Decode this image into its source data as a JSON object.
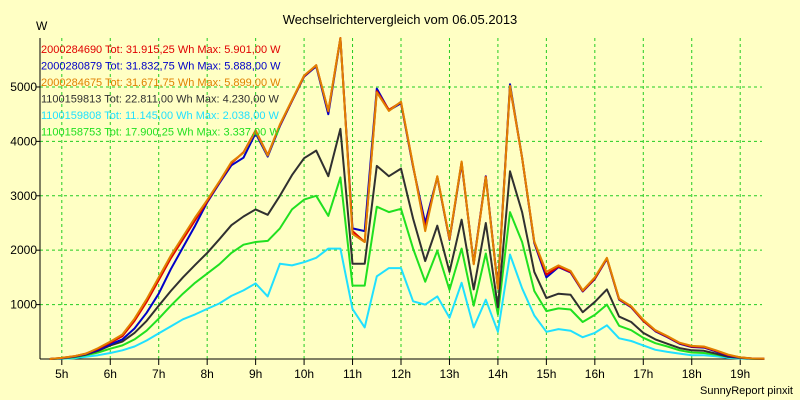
{
  "chart_data": {
    "type": "line",
    "title": "Wechselrichtervergleich vom 06.05.2013",
    "ylabel": "W",
    "footer": "SunnyReport pinxit",
    "ylim": [
      0,
      5900
    ],
    "y_ticks": [
      1000,
      2000,
      3000,
      4000,
      5000
    ],
    "xlim": [
      4.55,
      19.45
    ],
    "x_ticks": [
      5,
      6,
      7,
      8,
      9,
      10,
      11,
      12,
      13,
      14,
      15,
      16,
      17,
      18,
      19
    ],
    "x_tick_labels": [
      "5h",
      "6h",
      "7h",
      "8h",
      "9h",
      "10h",
      "11h",
      "12h",
      "13h",
      "14h",
      "15h",
      "16h",
      "17h",
      "18h",
      "19h"
    ],
    "grid": true,
    "legend_position": "top-left",
    "x": [
      4.75,
      5.0,
      5.25,
      5.5,
      5.75,
      6.0,
      6.25,
      6.5,
      6.75,
      7.0,
      7.25,
      7.5,
      7.75,
      8.0,
      8.25,
      8.5,
      8.75,
      9.0,
      9.25,
      9.5,
      9.75,
      10.0,
      10.25,
      10.5,
      10.75,
      11.0,
      11.25,
      11.5,
      11.75,
      12.0,
      12.25,
      12.5,
      12.75,
      13.0,
      13.25,
      13.5,
      13.75,
      14.0,
      14.25,
      14.5,
      14.75,
      15.0,
      15.25,
      15.5,
      15.75,
      16.0,
      16.25,
      16.5,
      16.75,
      17.0,
      17.25,
      17.5,
      17.75,
      18.0,
      18.25,
      18.5,
      18.75,
      19.0,
      19.25,
      19.5
    ],
    "series": [
      {
        "name": "2000284690",
        "total": "31.915,25",
        "max": "5.901,00",
        "color": "#e00000",
        "values": [
          0,
          20,
          50,
          100,
          190,
          300,
          420,
          700,
          1050,
          1450,
          1850,
          2200,
          2550,
          2900,
          3250,
          3600,
          3800,
          4200,
          3750,
          4300,
          4750,
          5200,
          5400,
          4550,
          5900,
          2350,
          2150,
          4920,
          4580,
          4720,
          3550,
          2400,
          3350,
          2200,
          3620,
          1750,
          3350,
          1300,
          5000,
          3700,
          2150,
          1550,
          1700,
          1600,
          1250,
          1480,
          1850,
          1100,
          960,
          700,
          520,
          410,
          290,
          230,
          220,
          150,
          70,
          30,
          10,
          5
        ]
      },
      {
        "name": "2000280879",
        "total": "31.832,75",
        "max": "5.888,00",
        "color": "#0000c8",
        "values": [
          0,
          15,
          40,
          90,
          170,
          270,
          360,
          560,
          850,
          1200,
          1650,
          2050,
          2450,
          2880,
          3230,
          3560,
          3700,
          4150,
          3720,
          4280,
          4740,
          5190,
          5380,
          4500,
          5888,
          2400,
          2350,
          4970,
          4570,
          4700,
          3530,
          2500,
          3340,
          2190,
          3600,
          1760,
          3360,
          1310,
          5050,
          3700,
          2130,
          1500,
          1690,
          1590,
          1240,
          1470,
          1840,
          1090,
          950,
          700,
          510,
          400,
          280,
          220,
          210,
          140,
          60,
          25,
          10,
          5
        ]
      },
      {
        "name": "2000284675",
        "total": "31.671,75",
        "max": "5.899,00",
        "color": "#e08000",
        "values": [
          0,
          20,
          50,
          100,
          200,
          320,
          450,
          740,
          1100,
          1500,
          1900,
          2250,
          2600,
          2920,
          3260,
          3620,
          3790,
          4190,
          3740,
          4310,
          4760,
          5210,
          5400,
          4560,
          5899,
          2300,
          2150,
          4900,
          4560,
          4730,
          3560,
          2350,
          3360,
          2210,
          3630,
          1740,
          3340,
          1290,
          5020,
          3700,
          2160,
          1600,
          1720,
          1620,
          1260,
          1500,
          1860,
          1110,
          970,
          720,
          530,
          420,
          300,
          240,
          230,
          160,
          80,
          30,
          10,
          5
        ]
      },
      {
        "name": "1100159813",
        "total": "22.811,00",
        "max": "4.230,00",
        "color": "#303030",
        "values": [
          0,
          15,
          40,
          80,
          150,
          250,
          320,
          480,
          700,
          980,
          1250,
          1500,
          1730,
          1950,
          2200,
          2460,
          2620,
          2750,
          2650,
          3000,
          3380,
          3690,
          3830,
          3360,
          4230,
          1750,
          1750,
          3550,
          3360,
          3500,
          2580,
          1800,
          2450,
          1600,
          2560,
          1280,
          2500,
          950,
          3450,
          2700,
          1600,
          1120,
          1200,
          1180,
          860,
          1050,
          1280,
          780,
          680,
          480,
          360,
          280,
          200,
          160,
          150,
          100,
          40,
          20,
          5,
          0
        ]
      },
      {
        "name": "1100159808",
        "total": "11.145,00",
        "max": "2.038,00",
        "color": "#20e0ff",
        "values": [
          0,
          5,
          15,
          40,
          70,
          110,
          160,
          230,
          340,
          470,
          600,
          730,
          820,
          920,
          1020,
          1160,
          1260,
          1390,
          1150,
          1750,
          1720,
          1780,
          1860,
          2030,
          2030,
          920,
          580,
          1520,
          1670,
          1670,
          1060,
          1000,
          1150,
          760,
          1400,
          580,
          1090,
          500,
          1920,
          1300,
          800,
          500,
          550,
          520,
          400,
          480,
          620,
          380,
          330,
          250,
          170,
          130,
          100,
          70,
          70,
          50,
          20,
          10,
          0,
          0
        ]
      },
      {
        "name": "1100158753",
        "total": "17.900,25",
        "max": "3.337,00",
        "color": "#20e020",
        "values": [
          0,
          10,
          30,
          70,
          120,
          190,
          250,
          360,
          520,
          740,
          980,
          1200,
          1400,
          1570,
          1740,
          1950,
          2100,
          2150,
          2170,
          2400,
          2750,
          2930,
          3000,
          2630,
          3337,
          1350,
          1350,
          2800,
          2700,
          2760,
          2030,
          1420,
          1990,
          1270,
          2030,
          980,
          1940,
          820,
          2700,
          2150,
          1250,
          880,
          930,
          910,
          680,
          810,
          1000,
          610,
          530,
          390,
          290,
          230,
          160,
          120,
          110,
          80,
          40,
          20,
          5,
          0
        ]
      }
    ]
  },
  "legend": {
    "tot_label": "Tot:",
    "max_label": "Max:",
    "unit": "Wh",
    "max_unit": "W"
  }
}
